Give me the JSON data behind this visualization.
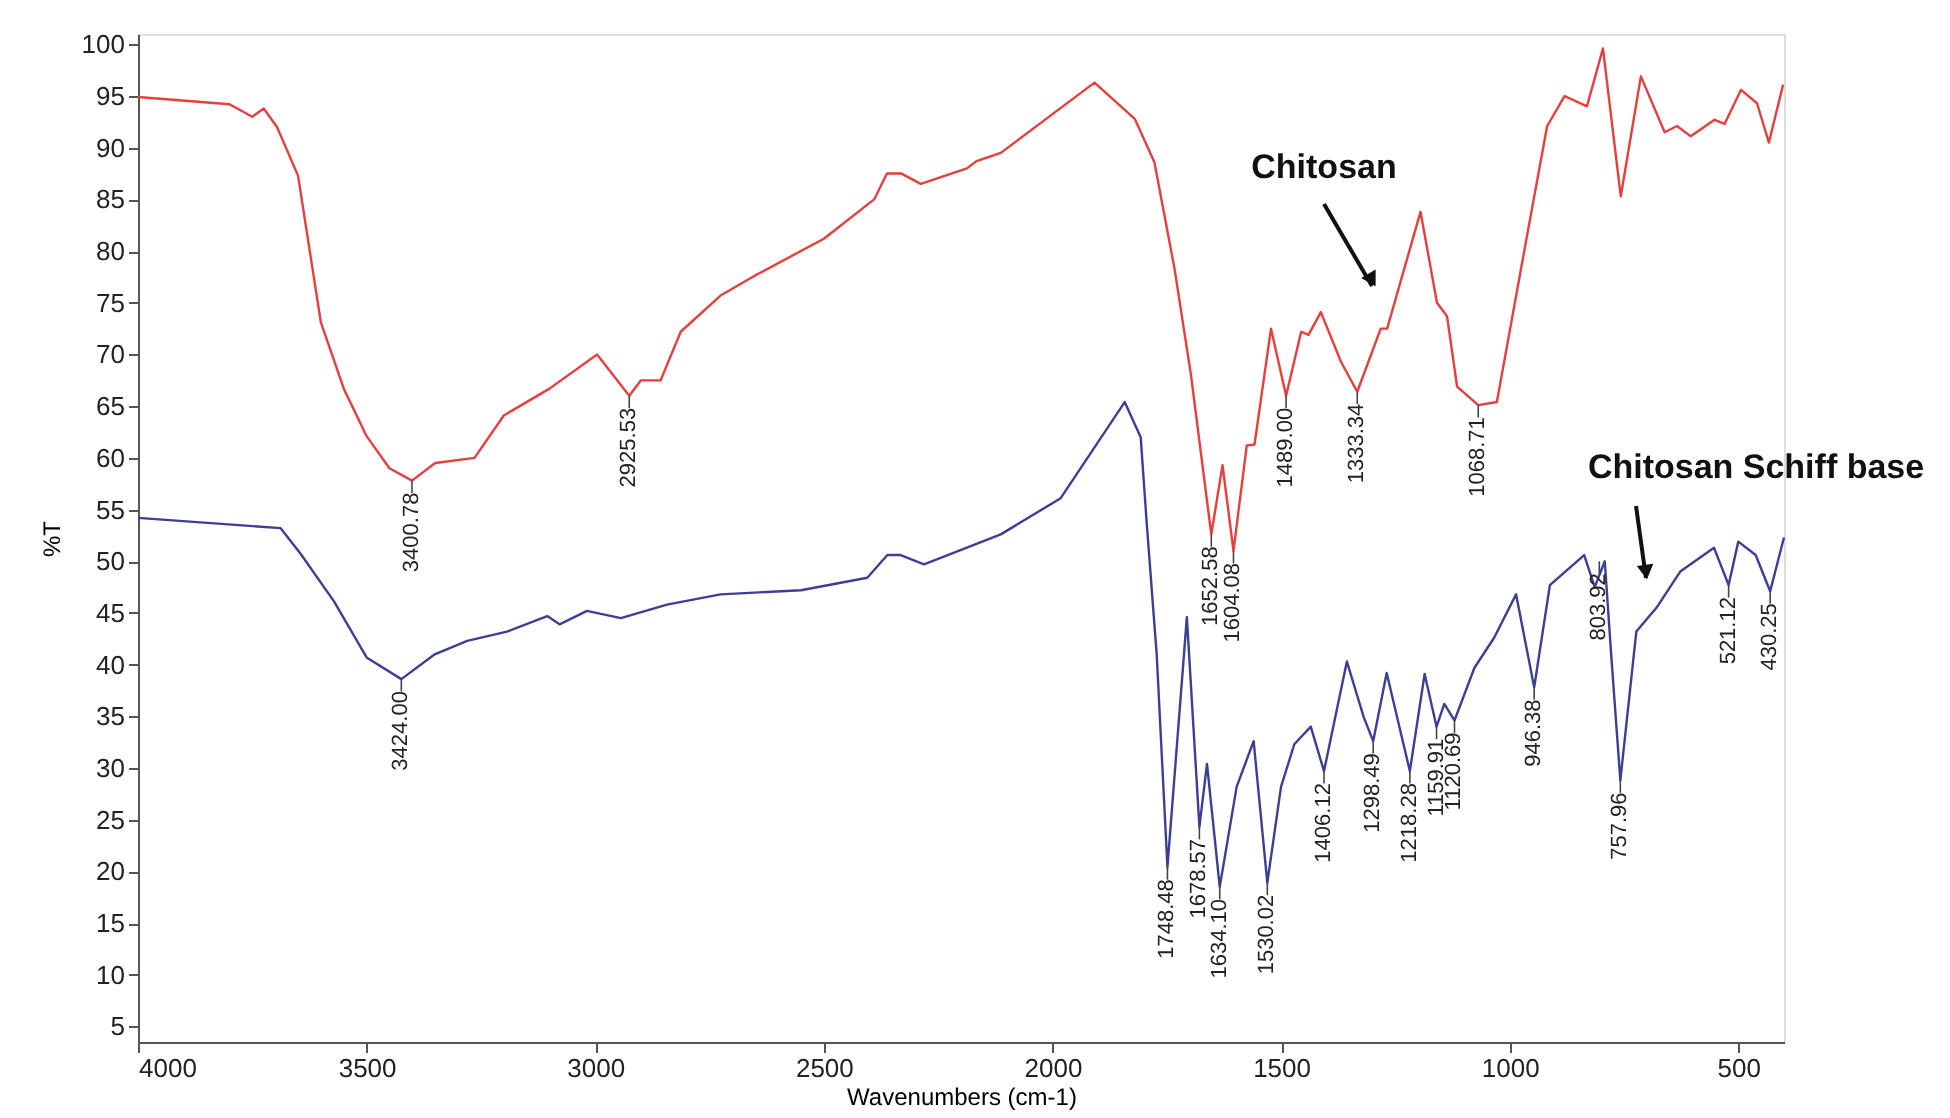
{
  "chart_data": {
    "type": "line",
    "xlabel": "Wavenumbers (cm-1)",
    "ylabel": "%T",
    "xlim": [
      4000,
      400
    ],
    "ylim": [
      3.5,
      101
    ],
    "xticks": [
      4000,
      3500,
      3000,
      2500,
      2000,
      1500,
      1000,
      500
    ],
    "yticks": [
      5,
      10,
      15,
      20,
      25,
      30,
      35,
      40,
      45,
      50,
      55,
      60,
      65,
      70,
      75,
      80,
      85,
      90,
      95,
      100
    ],
    "grid": false,
    "marker": "none",
    "line_style": "solid",
    "series": [
      {
        "name": "Chitosan",
        "color": "#e83e3e",
        "x": [
          4000,
          3800,
          3750,
          3725,
          3696,
          3650,
          3600,
          3550,
          3500,
          3450,
          3400.78,
          3350,
          3264,
          3200,
          3100,
          2996,
          2925.53,
          2900,
          2857,
          2813,
          2726,
          2652,
          2500,
          2390,
          2362,
          2330,
          2288,
          2187,
          2166,
          2113,
          1908,
          1820,
          1777,
          1733,
          1697,
          1652.58,
          1628,
          1604.08,
          1575,
          1558,
          1522,
          1489,
          1456,
          1440,
          1413,
          1369,
          1333.34,
          1282,
          1268,
          1195,
          1159,
          1137,
          1115,
          1068.71,
          1028,
          962,
          918,
          880,
          831,
          796,
          757,
          713,
          661,
          634,
          604,
          552,
          530,
          494,
          459,
          433,
          402
        ],
        "values": [
          94.9,
          94.2,
          93.0,
          93.8,
          92.0,
          87.3,
          73.1,
          66.7,
          62.1,
          59.0,
          57.8,
          59.5,
          60.0,
          64.1,
          66.7,
          70.0,
          66.0,
          67.5,
          67.5,
          72.2,
          75.7,
          77.6,
          81.2,
          85.0,
          87.5,
          87.5,
          86.5,
          88.0,
          88.7,
          89.5,
          96.3,
          92.8,
          88.6,
          78.3,
          68.0,
          52.6,
          59.3,
          51.0,
          61.2,
          61.3,
          72.5,
          66.0,
          72.2,
          71.9,
          74.1,
          69.3,
          66.4,
          72.5,
          72.5,
          83.8,
          75.0,
          73.7,
          66.9,
          65.1,
          65.4,
          81.5,
          92.1,
          95.0,
          94.0,
          99.6,
          85.3,
          96.9,
          91.5,
          92.1,
          91.1,
          92.7,
          92.3,
          95.6,
          94.3,
          90.5,
          96.1
        ]
      },
      {
        "name": "Chitosan Schiff base",
        "color": "#3b3f98",
        "x": [
          4000,
          3688,
          3644,
          3571,
          3500,
          3424,
          3351,
          3280,
          3193,
          3105,
          3078,
          3018,
          2944,
          2843,
          2726,
          2550,
          2405,
          2361,
          2332,
          2281,
          2113,
          1982,
          1842,
          1807,
          1794,
          1772,
          1748.48,
          1706,
          1678.57,
          1662,
          1634.1,
          1597,
          1560,
          1530.02,
          1500,
          1471,
          1435,
          1406.12,
          1356,
          1319,
          1298.49,
          1269,
          1218.28,
          1186,
          1159.91,
          1143,
          1120.69,
          1077,
          1034,
          986,
          946.38,
          912,
          837,
          814,
          792,
          778,
          757.96,
          723,
          679,
          627,
          553,
          521.12,
          500,
          462,
          430.25,
          400
        ],
        "values": [
          54.2,
          53.2,
          50.7,
          46.1,
          40.7,
          38.6,
          41.0,
          42.3,
          43.2,
          44.7,
          43.9,
          45.2,
          44.5,
          45.8,
          46.8,
          47.2,
          48.4,
          50.6,
          50.6,
          49.7,
          52.6,
          56.1,
          65.4,
          62.0,
          53.8,
          41.0,
          20.4,
          44.6,
          24.3,
          30.4,
          18.5,
          28.2,
          32.6,
          18.9,
          28.2,
          32.3,
          34.0,
          29.7,
          40.3,
          34.9,
          32.6,
          39.2,
          29.7,
          39.1,
          34.0,
          36.2,
          34.6,
          39.7,
          42.6,
          46.8,
          37.8,
          47.7,
          50.6,
          47.5,
          50.0,
          41.0,
          28.8,
          43.2,
          45.5,
          49.0,
          51.3,
          47.7,
          51.9,
          50.6,
          47.1,
          52.3
        ]
      }
    ],
    "annotations": [
      {
        "text": "3400.78",
        "x": 3400.78,
        "y": 57.8
      },
      {
        "text": "2925.53",
        "x": 2925.53,
        "y": 66.0
      },
      {
        "text": "1652.58",
        "x": 1652.58,
        "y": 52.6
      },
      {
        "text": "1604.08",
        "x": 1604.08,
        "y": 51.0
      },
      {
        "text": "1489.00",
        "x": 1489,
        "y": 66.0
      },
      {
        "text": "1333.34",
        "x": 1333.34,
        "y": 66.4
      },
      {
        "text": "1068.71",
        "x": 1068.71,
        "y": 65.1
      },
      {
        "text": "3424.00",
        "x": 3424,
        "y": 38.6
      },
      {
        "text": "1748.48",
        "x": 1748.48,
        "y": 20.4
      },
      {
        "text": "1678.57",
        "x": 1678.57,
        "y": 24.3
      },
      {
        "text": "1634.10",
        "x": 1634.1,
        "y": 18.5
      },
      {
        "text": "1530.02",
        "x": 1530.02,
        "y": 18.9
      },
      {
        "text": "1406.12",
        "x": 1406.12,
        "y": 29.7
      },
      {
        "text": "1298.49",
        "x": 1298.49,
        "y": 32.6
      },
      {
        "text": "1218.28",
        "x": 1218.28,
        "y": 29.7
      },
      {
        "text": "1159.91",
        "x": 1159.91,
        "y": 34.0
      },
      {
        "text": "1120.69",
        "x": 1120.69,
        "y": 34.6
      },
      {
        "text": "946.38",
        "x": 946.38,
        "y": 37.8
      },
      {
        "text": "803.92",
        "x": 803.92,
        "y": 50.0
      },
      {
        "text": "757.96",
        "x": 757.96,
        "y": 28.8
      },
      {
        "text": "521.12",
        "x": 521.12,
        "y": 47.7
      },
      {
        "text": "430.25",
        "x": 430.25,
        "y": 47.1
      }
    ]
  }
}
